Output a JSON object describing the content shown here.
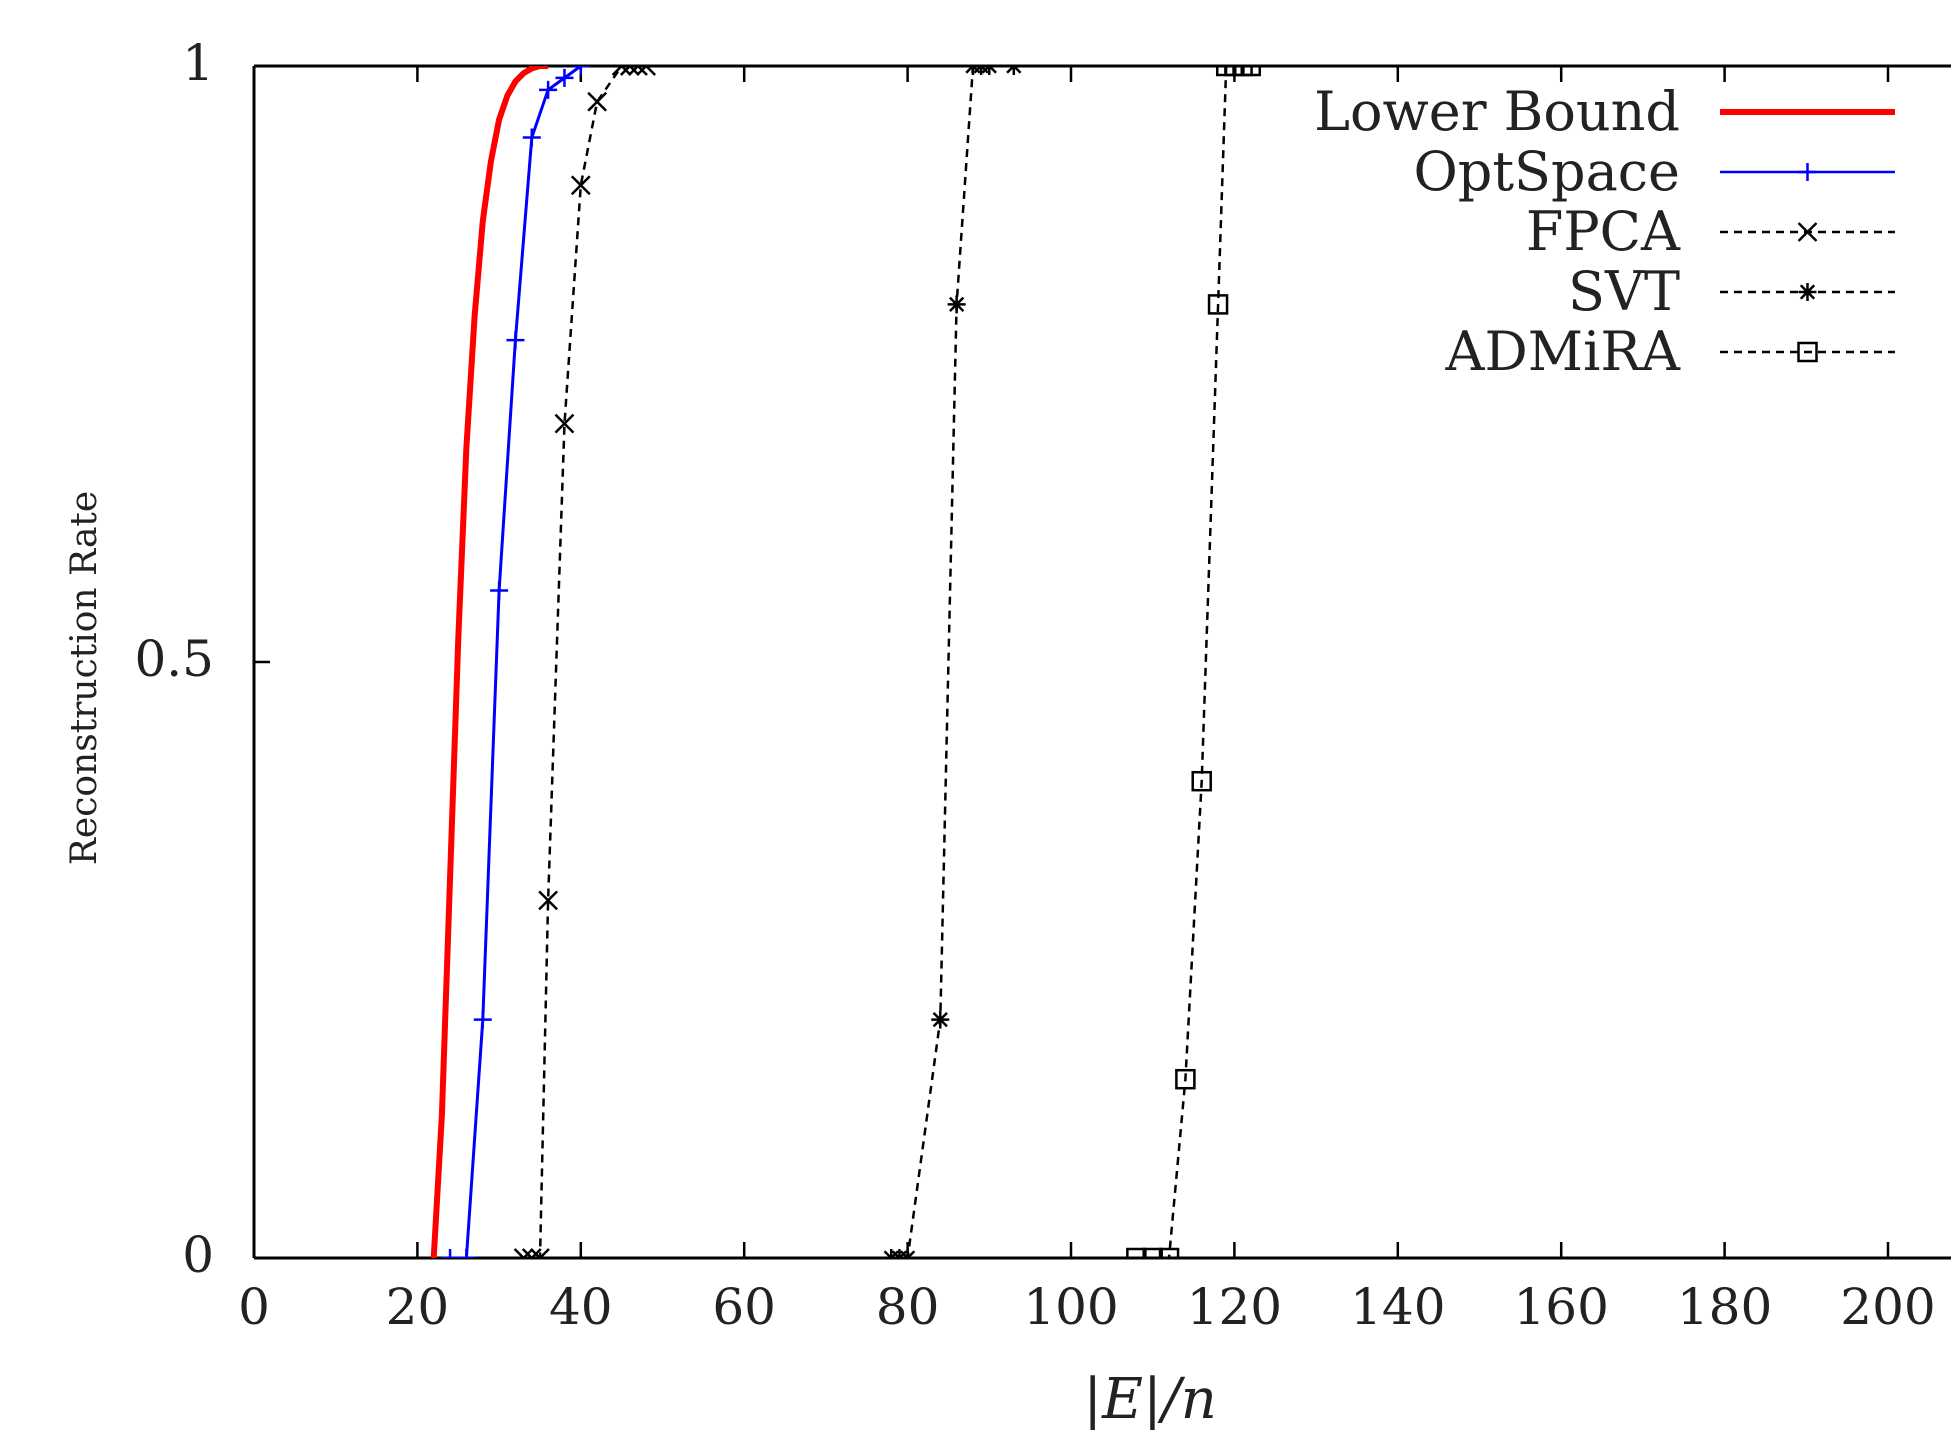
{
  "chart_data": {
    "type": "line",
    "title": "",
    "xlabel": "|E|/n",
    "ylabel": "Reconstruction Rate",
    "xlim": [
      0,
      200
    ],
    "ylim": [
      0,
      1
    ],
    "xticks": [
      0,
      20,
      40,
      60,
      80,
      100,
      120,
      140,
      160,
      180,
      200
    ],
    "yticks": [
      0,
      0.5,
      1
    ],
    "ytick_labels": [
      "0",
      "0.5",
      "1"
    ],
    "legend_position": "top-right",
    "grid": false,
    "series": [
      {
        "name": "Lower Bound",
        "color": "#ff0000",
        "style": "solid",
        "marker": "none",
        "x": [
          22,
          23,
          24,
          25,
          26,
          27,
          28,
          29,
          30,
          31,
          32,
          33,
          34,
          35,
          36
        ],
        "y": [
          0,
          0.12,
          0.32,
          0.52,
          0.68,
          0.79,
          0.87,
          0.92,
          0.955,
          0.975,
          0.987,
          0.994,
          0.998,
          1,
          1
        ]
      },
      {
        "name": "OptSpace",
        "color": "#0000ff",
        "style": "solid",
        "marker": "plus",
        "x": [
          24,
          26,
          28,
          30,
          32,
          34,
          36,
          38,
          40
        ],
        "y": [
          0,
          0,
          0.2,
          0.56,
          0.77,
          0.94,
          0.98,
          0.99,
          1
        ]
      },
      {
        "name": "FPCA",
        "color": "#000000",
        "style": "dashed",
        "marker": "x",
        "x": [
          33,
          34,
          35,
          36,
          38,
          40,
          42,
          45,
          46,
          47,
          48
        ],
        "y": [
          0,
          0,
          0,
          0.3,
          0.7,
          0.9,
          0.97,
          1,
          1,
          1,
          1
        ]
      },
      {
        "name": "SVT",
        "color": "#000000",
        "style": "dashed",
        "marker": "star",
        "x": [
          78,
          79,
          80,
          84,
          86,
          88,
          89,
          90,
          93
        ],
        "y": [
          0,
          0,
          0,
          0.2,
          0.8,
          1,
          1,
          1,
          1
        ]
      },
      {
        "name": "ADMiRA",
        "color": "#000000",
        "style": "dashed",
        "marker": "square",
        "x": [
          108,
          110,
          112,
          114,
          116,
          118,
          119,
          120,
          121,
          122
        ],
        "y": [
          0,
          0,
          0,
          0.15,
          0.4,
          0.8,
          1,
          1,
          1,
          1
        ]
      }
    ]
  }
}
